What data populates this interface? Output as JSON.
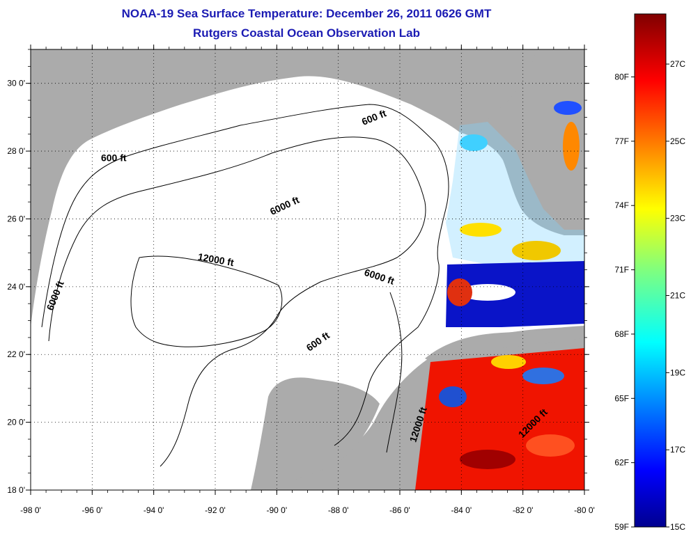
{
  "header": {
    "title": "NOAA-19 Sea Surface Temperature:  December 26, 2011 0626 GMT",
    "subtitle": "Rutgers Coastal Ocean Observation Lab"
  },
  "map": {
    "lon_ticks": [
      "-98 0'",
      "-96 0'",
      "-94 0'",
      "-92 0'",
      "-90 0'",
      "-88 0'",
      "-86 0'",
      "-84 0'",
      "-82 0'",
      "-80 0'"
    ],
    "lat_ticks": [
      "18 0'",
      "20 0'",
      "22 0'",
      "24 0'",
      "26 0'",
      "28 0'",
      "30 0'"
    ],
    "lon_range": [
      -98,
      -80
    ],
    "lat_range": [
      18,
      31
    ],
    "grid": "dotted",
    "colors": {
      "land": "#ababab",
      "ocean": "#ffffff",
      "contour": "#000000"
    },
    "contour_labels": [
      {
        "text": "600 ft",
        "lon": -95.3,
        "lat": 27.7,
        "angle": 0
      },
      {
        "text": "600 ft",
        "lon": -86.8,
        "lat": 28.9,
        "angle": -22
      },
      {
        "text": "6000 ft",
        "lon": -89.7,
        "lat": 26.3,
        "angle": -25
      },
      {
        "text": "6000 ft",
        "lon": -97.1,
        "lat": 23.7,
        "angle": -68
      },
      {
        "text": "12000 ft",
        "lon": -92.0,
        "lat": 24.7,
        "angle": 10
      },
      {
        "text": "6000 ft",
        "lon": -86.7,
        "lat": 24.2,
        "angle": 18
      },
      {
        "text": "600 ft",
        "lon": -88.6,
        "lat": 22.3,
        "angle": -35
      },
      {
        "text": "12000 ft",
        "lon": -85.3,
        "lat": 19.9,
        "angle": -72
      },
      {
        "text": "12000 ft",
        "lon": -81.6,
        "lat": 19.9,
        "angle": -45
      }
    ]
  },
  "colorbar": {
    "f_labels": [
      "80F",
      "77F",
      "74F",
      "71F",
      "68F",
      "65F",
      "62F",
      "59F"
    ],
    "c_labels": [
      "27C",
      "25C",
      "23C",
      "21C",
      "19C",
      "17C",
      "15C"
    ],
    "f_values": [
      80,
      77,
      74,
      71,
      68,
      65,
      62,
      59
    ],
    "c_values": [
      27,
      25,
      23,
      21,
      19,
      17,
      15
    ],
    "c_min": 15,
    "c_max": 28.3,
    "colormap": "jet"
  }
}
